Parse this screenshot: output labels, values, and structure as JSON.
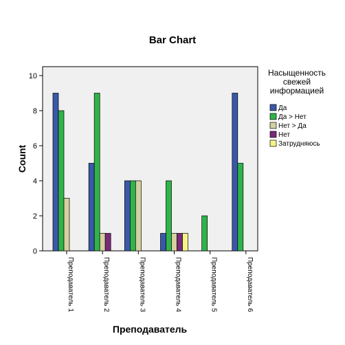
{
  "chart_data": {
    "type": "bar",
    "title": "Bar Chart",
    "xlabel": "Преподаватель",
    "ylabel": "Count",
    "ylim": [
      0,
      10
    ],
    "yticks": [
      0,
      2,
      4,
      6,
      8,
      10
    ],
    "grid": false,
    "legend_position": "right",
    "legend_title": [
      "Насыщенность",
      "свежей",
      "информацией"
    ],
    "categories": [
      "Преподаватель 1",
      "Преподаватель 2",
      "Преподаватель 3",
      "Преподаватель 4",
      "Преподаватель 5",
      "Преподаватель 6"
    ],
    "series": [
      {
        "name": "Да",
        "color": "#3b58a8",
        "values": [
          9,
          5,
          4,
          1,
          0,
          9
        ]
      },
      {
        "name": "Да > Нет",
        "color": "#2fb34a",
        "values": [
          8,
          9,
          4,
          4,
          2,
          5
        ]
      },
      {
        "name": "Нет > Да",
        "color": "#d4d0a0",
        "values": [
          3,
          1,
          4,
          1,
          0,
          0
        ]
      },
      {
        "name": "Нет",
        "color": "#7a2a7a",
        "values": [
          0,
          1,
          0,
          1,
          0,
          0
        ]
      },
      {
        "name": "Затрудняюсь",
        "color": "#f7f38a",
        "values": [
          0,
          0,
          0,
          1,
          0,
          0
        ]
      }
    ],
    "plot_background": "#f0f0f0"
  }
}
